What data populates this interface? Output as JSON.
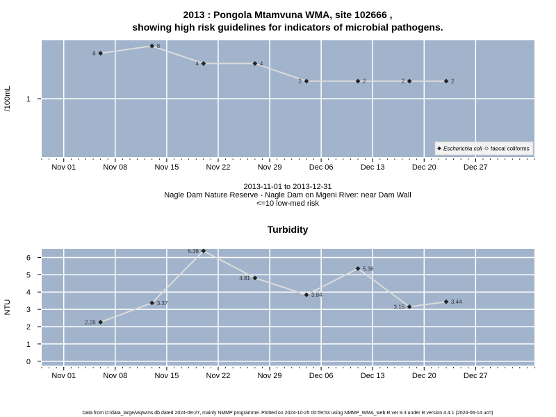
{
  "page_title_line1": "2013 : Pongola Mtamvuna WMA, site 102666 ,",
  "page_title_line2": "showing high risk guidelines for indicators of microbial pathogens.",
  "subtitle": {
    "line1": "2013-11-01 to 2013-12-31",
    "line2": "Nagle Dam Nature Reserve - Nagle Dam on Mgeni River: near Dam Wall",
    "line3": "<=10 low-med risk"
  },
  "footer": "Data from D:/data_large/wq/wms.db dated 2024-08-27, mainly NMMP programme. Plotted on 2024-10-25 00:59:53 using NMMP_WMA_web.R ver 9.3 under R version 4.4.1 (2024-06-14 ucrt)",
  "colors": {
    "panel_bg": "#a2b4cc",
    "grid": "#ffffff",
    "line": "#dcdcdc",
    "marker": "#222222"
  },
  "chart_data": [
    {
      "type": "line",
      "title": "",
      "ylabel": "/100mL",
      "y_scale": "log",
      "y_ticks": [
        1
      ],
      "x_ticks": [
        "Nov 01",
        "Nov 08",
        "Nov 15",
        "Nov 22",
        "Nov 29",
        "Dec 06",
        "Dec 13",
        "Dec 20",
        "Dec 27"
      ],
      "x_tick_dates": [
        "2013-11-01",
        "2013-11-08",
        "2013-11-15",
        "2013-11-22",
        "2013-11-29",
        "2013-12-06",
        "2013-12-13",
        "2013-12-20",
        "2013-12-27"
      ],
      "xlim": [
        "2013-10-29",
        "2014-01-04"
      ],
      "ylim": [
        0.1,
        10
      ],
      "grid": true,
      "legend_position": "bottom-right",
      "legend": [
        {
          "name": "Escherichia coli",
          "marker": "filled-diamond"
        },
        {
          "name": "faecal coliforms",
          "marker": "open-diamond"
        }
      ],
      "series": [
        {
          "name": "Escherichia coli",
          "x": [
            "2013-11-06",
            "2013-11-13",
            "2013-11-20",
            "2013-11-27",
            "2013-12-04",
            "2013-12-11",
            "2013-12-18",
            "2013-12-23"
          ],
          "values": [
            6,
            8,
            4,
            4,
            2,
            2,
            2,
            2
          ],
          "labels": [
            "6",
            "8",
            "4",
            "4",
            "2",
            "2",
            "2",
            "2"
          ],
          "label_side": [
            "left",
            "right",
            "left",
            "right",
            "left",
            "right",
            "left",
            "right"
          ]
        }
      ]
    },
    {
      "type": "line",
      "title": "Turbidity",
      "ylabel": "NTU",
      "y_scale": "linear",
      "y_ticks": [
        0,
        1,
        2,
        3,
        4,
        5,
        6
      ],
      "x_ticks": [
        "Nov 01",
        "Nov 08",
        "Nov 15",
        "Nov 22",
        "Nov 29",
        "Dec 06",
        "Dec 13",
        "Dec 20",
        "Dec 27"
      ],
      "x_tick_dates": [
        "2013-11-01",
        "2013-11-08",
        "2013-11-15",
        "2013-11-22",
        "2013-11-29",
        "2013-12-06",
        "2013-12-13",
        "2013-12-20",
        "2013-12-27"
      ],
      "xlim": [
        "2013-10-29",
        "2014-01-04"
      ],
      "ylim": [
        -0.25,
        6.5
      ],
      "grid": true,
      "series": [
        {
          "name": "",
          "x": [
            "2013-11-06",
            "2013-11-13",
            "2013-11-20",
            "2013-11-27",
            "2013-12-04",
            "2013-12-11",
            "2013-12-18",
            "2013-12-23"
          ],
          "values": [
            2.26,
            3.37,
            6.38,
            4.81,
            3.84,
            5.36,
            3.15,
            3.44
          ],
          "labels": [
            "2.26",
            "3.37",
            "6.38",
            "4.81",
            "3.84",
            "5.36",
            "3.15",
            "3.44"
          ],
          "label_side": [
            "left",
            "right",
            "left",
            "left",
            "right",
            "right",
            "left",
            "right"
          ]
        }
      ]
    }
  ]
}
